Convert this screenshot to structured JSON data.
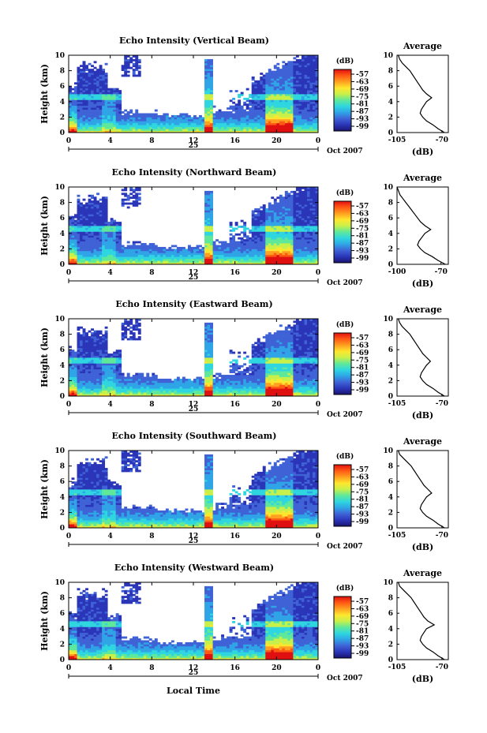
{
  "figure": {
    "xlabel": "Local Time",
    "date_label": "Oct 2007",
    "day_label": "25",
    "colorbar_unit": "(dB)",
    "colorbar_ticks": [
      "-57",
      "-63",
      "-69",
      "-75",
      "-81",
      "-87",
      "-93",
      "-99"
    ],
    "colors": {
      "background": "#ffffff",
      "axis": "#000000",
      "colormap": [
        "#1a1470",
        "#2a35b8",
        "#3f63d6",
        "#2fa4e6",
        "#2fd6e0",
        "#5fe89a",
        "#c8f04a",
        "#ffe62e",
        "#ffa020",
        "#ff5a14",
        "#e01010"
      ]
    }
  },
  "chart_data": [
    {
      "type": "heatmap",
      "title": "Echo Intensity (Vertical Beam)",
      "ylabel": "Height (km)",
      "x_ticks": [
        "0",
        "4",
        "8",
        "12",
        "16",
        "20",
        "0"
      ],
      "y_ticks": [
        "0",
        "2",
        "4",
        "6",
        "8",
        "10"
      ],
      "xlim": [
        0,
        24
      ],
      "ylim": [
        0,
        10
      ],
      "zlim_dB": [
        -99,
        -57
      ],
      "profile": {
        "title": "Average",
        "xlabel": "(dB)",
        "x_ticks": [
          "-105",
          "-70"
        ],
        "xlim": [
          -105,
          -65
        ],
        "height_km": [
          0,
          0.5,
          1,
          1.5,
          2,
          2.5,
          3,
          3.5,
          4,
          4.5,
          5,
          5.5,
          6,
          6.5,
          7,
          7.5,
          8,
          8.5,
          9,
          9.5,
          10
        ],
        "value_dB": [
          -68,
          -73,
          -77,
          -82,
          -85,
          -87,
          -86,
          -84,
          -82,
          -78,
          -82,
          -85,
          -87,
          -89,
          -91,
          -93,
          -95,
          -98,
          -101,
          -103,
          -104
        ]
      }
    },
    {
      "type": "heatmap",
      "title": "Echo Intensity (Northward Beam)",
      "ylabel": "Height (km)",
      "x_ticks": [
        "0",
        "4",
        "8",
        "12",
        "16",
        "20",
        "0"
      ],
      "y_ticks": [
        "0",
        "2",
        "4",
        "6",
        "8",
        "10"
      ],
      "xlim": [
        0,
        24
      ],
      "ylim": [
        0,
        10
      ],
      "zlim_dB": [
        -99,
        -57
      ],
      "profile": {
        "title": "Average",
        "xlabel": "(dB)",
        "x_ticks": [
          "-100",
          "-70"
        ],
        "xlim": [
          -100,
          -65
        ],
        "height_km": [
          0,
          0.5,
          1,
          1.5,
          2,
          2.5,
          3,
          3.5,
          4,
          4.5,
          5,
          5.5,
          6,
          6.5,
          7,
          7.5,
          8,
          8.5,
          9,
          9.5,
          10
        ],
        "value_dB": [
          -67,
          -72,
          -76,
          -81,
          -84,
          -86,
          -85,
          -83,
          -81,
          -77,
          -81,
          -84,
          -86,
          -88,
          -90,
          -92,
          -94,
          -96,
          -98,
          -99,
          -100
        ]
      }
    },
    {
      "type": "heatmap",
      "title": "Echo Intensity (Eastward Beam)",
      "ylabel": "Height (km)",
      "x_ticks": [
        "0",
        "4",
        "8",
        "12",
        "16",
        "20",
        "0"
      ],
      "y_ticks": [
        "0",
        "2",
        "4",
        "6",
        "8",
        "10"
      ],
      "xlim": [
        0,
        24
      ],
      "ylim": [
        0,
        10
      ],
      "zlim_dB": [
        -99,
        -57
      ],
      "profile": {
        "title": "Average",
        "xlabel": "(dB)",
        "x_ticks": [
          "-105",
          "-70"
        ],
        "xlim": [
          -105,
          -65
        ],
        "height_km": [
          0,
          0.5,
          1,
          1.5,
          2,
          2.5,
          3,
          3.5,
          4,
          4.5,
          5,
          5.5,
          6,
          6.5,
          7,
          7.5,
          8,
          8.5,
          9,
          9.5,
          10
        ],
        "value_dB": [
          -68,
          -73,
          -77,
          -82,
          -85,
          -87,
          -86,
          -84,
          -82,
          -79,
          -82,
          -85,
          -87,
          -89,
          -91,
          -93,
          -95,
          -98,
          -101,
          -103,
          -104
        ]
      }
    },
    {
      "type": "heatmap",
      "title": "Echo Intensity (Southward Beam)",
      "ylabel": "Height (km)",
      "x_ticks": [
        "0",
        "4",
        "8",
        "12",
        "16",
        "20",
        "0"
      ],
      "y_ticks": [
        "0",
        "2",
        "4",
        "6",
        "8",
        "10"
      ],
      "xlim": [
        0,
        24
      ],
      "ylim": [
        0,
        10
      ],
      "zlim_dB": [
        -99,
        -57
      ],
      "profile": {
        "title": "Average",
        "xlabel": "(dB)",
        "x_ticks": [
          "-105",
          "-70"
        ],
        "xlim": [
          -105,
          -65
        ],
        "height_km": [
          0,
          0.5,
          1,
          1.5,
          2,
          2.5,
          3,
          3.5,
          4,
          4.5,
          5,
          5.5,
          6,
          6.5,
          7,
          7.5,
          8,
          8.5,
          9,
          9.5,
          10
        ],
        "value_dB": [
          -68,
          -73,
          -77,
          -82,
          -85,
          -87,
          -86,
          -84,
          -82,
          -78,
          -81,
          -84,
          -86,
          -88,
          -90,
          -92,
          -94,
          -97,
          -100,
          -103,
          -104
        ]
      }
    },
    {
      "type": "heatmap",
      "title": "Echo Intensity (Westward Beam)",
      "ylabel": "Height (km)",
      "x_ticks": [
        "0",
        "4",
        "8",
        "12",
        "16",
        "20",
        "0"
      ],
      "y_ticks": [
        "0",
        "2",
        "4",
        "6",
        "8",
        "10"
      ],
      "xlim": [
        0,
        24
      ],
      "ylim": [
        0,
        10
      ],
      "zlim_dB": [
        -99,
        -57
      ],
      "profile": {
        "title": "Average",
        "xlabel": "(dB)",
        "x_ticks": [
          "-105",
          "-70"
        ],
        "xlim": [
          -105,
          -65
        ],
        "height_km": [
          0,
          0.5,
          1,
          1.5,
          2,
          2.5,
          3,
          3.5,
          4,
          4.5,
          5,
          5.5,
          6,
          6.5,
          7,
          7.5,
          8,
          8.5,
          9,
          9.5,
          10
        ],
        "value_dB": [
          -68,
          -73,
          -77,
          -82,
          -85,
          -87,
          -86,
          -84,
          -82,
          -76,
          -81,
          -84,
          -86,
          -88,
          -90,
          -92,
          -94,
          -97,
          -100,
          -103,
          -104
        ]
      }
    }
  ]
}
